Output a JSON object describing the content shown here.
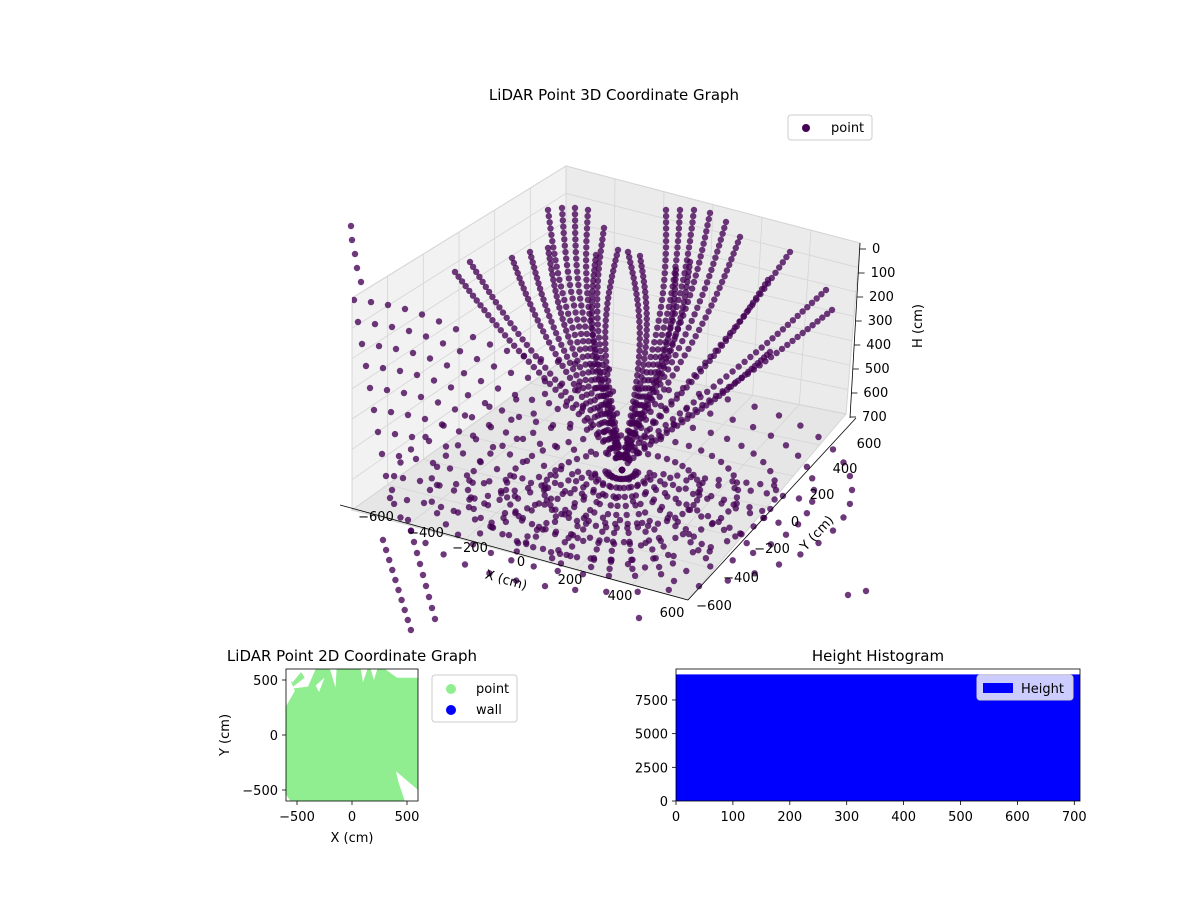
{
  "chart_data": [
    {
      "type": "scatter",
      "projection": "3d",
      "title": "LiDAR Point 3D Coordinate Graph",
      "xlabel": "X (cm)",
      "ylabel": "Y (cm)",
      "zlabel": "H (cm)",
      "xlim": [
        -600,
        600
      ],
      "ylim": [
        -600,
        600
      ],
      "zlim": [
        0,
        700
      ],
      "z_inverted": true,
      "xticks": [
        "−600",
        "−400",
        "−200",
        "0",
        "200",
        "400",
        "600"
      ],
      "yticks": [
        "−600",
        "−400",
        "−200",
        "0",
        "200",
        "400",
        "600"
      ],
      "zticks": [
        "0",
        "100",
        "200",
        "300",
        "400",
        "500",
        "600",
        "700"
      ],
      "grid": true,
      "legend_position": "top-right",
      "series": [
        {
          "name": "point",
          "color": "#440154",
          "description_values": "dense fan of beam points radiating from the sensor near the origin"
        }
      ]
    },
    {
      "type": "scatter",
      "title": "LiDAR Point 2D Coordinate Graph",
      "xlabel": "X (cm)",
      "ylabel": "Y (cm)",
      "xlim": [
        -600,
        600
      ],
      "ylim": [
        -600,
        600
      ],
      "xticks": [
        "−500",
        "0",
        "500"
      ],
      "yticks": [
        "500",
        "0",
        "−500"
      ],
      "legend_position": "outside-right",
      "series": [
        {
          "name": "point",
          "color": "#90ee90"
        },
        {
          "name": "wall",
          "color": "#0000ff"
        }
      ]
    },
    {
      "type": "bar",
      "title": "Height Histogram",
      "xlim": [
        0,
        710
      ],
      "ylim": [
        0,
        9800
      ],
      "xticks": [
        "0",
        "100",
        "200",
        "300",
        "400",
        "500",
        "600",
        "700"
      ],
      "yticks": [
        "0",
        "2500",
        "5000",
        "7500"
      ],
      "legend_position": "top-right",
      "series": [
        {
          "name": "Height",
          "color": "#0000ff",
          "bin_range": [
            0,
            710
          ],
          "count": 9400
        }
      ]
    }
  ]
}
